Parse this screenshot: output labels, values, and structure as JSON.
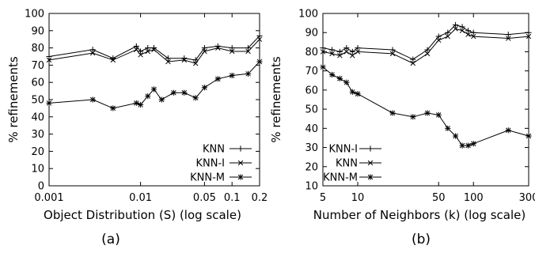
{
  "chart_data": [
    {
      "type": "line",
      "caption": "(a)",
      "xlabel": "Object Distribution (S) (log scale)",
      "ylabel": "% refinements",
      "xscale": "log",
      "xlim": [
        0.001,
        0.2
      ],
      "ylim": [
        0,
        100
      ],
      "xticks": [
        0.001,
        0.01,
        0.05,
        0.1,
        0.2
      ],
      "xtick_labels": [
        "0.001",
        "0.01",
        "0.05",
        "0.1",
        "0.2"
      ],
      "yticks": [
        0,
        10,
        20,
        30,
        40,
        50,
        60,
        70,
        80,
        90,
        100
      ],
      "ytick_labels": [
        "0",
        "10",
        "20",
        "30",
        "40",
        "50",
        "60",
        "70",
        "80",
        "90",
        "100"
      ],
      "legend_position": "bottom-right",
      "series": [
        {
          "name": "KNN",
          "marker": "plus",
          "x": [
            0.001,
            0.003,
            0.005,
            0.009,
            0.01,
            0.012,
            0.014,
            0.02,
            0.03,
            0.04,
            0.05,
            0.07,
            0.1,
            0.15,
            0.2
          ],
          "y": [
            75,
            79,
            74,
            81,
            78,
            80,
            80,
            74,
            74,
            73,
            80,
            81,
            80,
            80,
            87
          ]
        },
        {
          "name": "KNN-I",
          "marker": "x",
          "x": [
            0.001,
            0.003,
            0.005,
            0.009,
            0.01,
            0.012,
            0.014,
            0.02,
            0.03,
            0.04,
            0.05,
            0.07,
            0.1,
            0.15,
            0.2
          ],
          "y": [
            73,
            77,
            73,
            79,
            76,
            78,
            79,
            72,
            73,
            71,
            78,
            80,
            78,
            78,
            85
          ]
        },
        {
          "name": "KNN-M",
          "marker": "star",
          "x": [
            0.001,
            0.003,
            0.005,
            0.009,
            0.01,
            0.012,
            0.014,
            0.017,
            0.023,
            0.03,
            0.04,
            0.05,
            0.07,
            0.1,
            0.15,
            0.2
          ],
          "y": [
            48,
            50,
            45,
            48,
            47,
            52,
            56,
            50,
            54,
            54,
            51,
            57,
            62,
            64,
            65,
            72
          ]
        }
      ]
    },
    {
      "type": "line",
      "caption": "(b)",
      "xlabel": "Number of Neighbors (k) (log scale)",
      "ylabel": "% refinements",
      "xscale": "log",
      "xlim": [
        5,
        300
      ],
      "ylim": [
        10,
        100
      ],
      "xticks": [
        5,
        10,
        50,
        100,
        300
      ],
      "xtick_labels": [
        "5",
        "10",
        "50",
        "100",
        "300"
      ],
      "yticks": [
        10,
        20,
        30,
        40,
        50,
        60,
        70,
        80,
        90,
        100
      ],
      "ytick_labels": [
        "10",
        "20",
        "30",
        "40",
        "50",
        "60",
        "70",
        "80",
        "90",
        "100"
      ],
      "legend_position": "bottom-left",
      "series": [
        {
          "name": "KNN-I",
          "marker": "plus",
          "x": [
            5,
            6,
            7,
            8,
            9,
            10,
            20,
            30,
            40,
            50,
            60,
            70,
            80,
            90,
            100,
            200,
            300
          ],
          "y": [
            82,
            81,
            80,
            82,
            80,
            82,
            81,
            76,
            81,
            88,
            90,
            94,
            93,
            91,
            90,
            89,
            90
          ]
        },
        {
          "name": "KNN",
          "marker": "x",
          "x": [
            5,
            6,
            7,
            8,
            9,
            10,
            20,
            30,
            40,
            50,
            60,
            70,
            80,
            90,
            100,
            200,
            300
          ],
          "y": [
            80,
            79,
            78,
            80,
            78,
            80,
            79,
            74,
            79,
            86,
            88,
            92,
            91,
            89,
            88,
            87,
            88
          ]
        },
        {
          "name": "KNN-M",
          "marker": "star",
          "x": [
            5,
            6,
            7,
            8,
            9,
            10,
            20,
            30,
            40,
            50,
            60,
            70,
            80,
            90,
            100,
            200,
            300
          ],
          "y": [
            72,
            68,
            66,
            64,
            59,
            58,
            48,
            46,
            48,
            47,
            40,
            36,
            31,
            31,
            32,
            39,
            36
          ]
        }
      ]
    }
  ]
}
